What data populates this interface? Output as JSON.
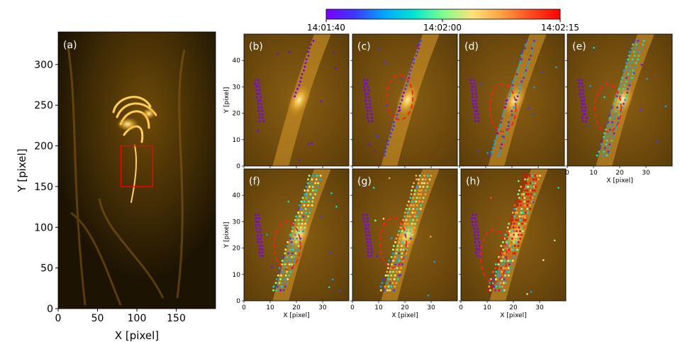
{
  "colorbar": {
    "tick_labels": [
      "14:01:40",
      "14:02:00",
      "14:02:15"
    ],
    "time_range_seconds": [
      0,
      35
    ],
    "tick_seconds": [
      0,
      20,
      35
    ],
    "stops": [
      "#7a00ff",
      "#3a3aff",
      "#00a8ff",
      "#00e6d2",
      "#7dff8c",
      "#ffe27a",
      "#ffa040",
      "#ff4a20",
      "#ff0000"
    ]
  },
  "chart_data": [
    {
      "panel": "(a)",
      "type": "image",
      "xlabel": "X [pixel]",
      "ylabel": "Y [pixel]",
      "xlim": [
        0,
        200
      ],
      "ylim": [
        0,
        340
      ],
      "xticks": [
        "0",
        "50",
        "100",
        "150"
      ],
      "yticks": [
        "0",
        "50",
        "100",
        "150",
        "200",
        "250",
        "300"
      ],
      "region_box": {
        "x": [
          80,
          120
        ],
        "y": [
          150,
          200
        ],
        "color": "#ff0000"
      }
    },
    {
      "panel": "(b)",
      "type": "scatter",
      "xlim": [
        0,
        40
      ],
      "ylim": [
        0,
        50
      ],
      "ylabel": "Y [pixel]",
      "yticks": [
        "0",
        "10",
        "20",
        "30",
        "40"
      ],
      "ellipse": null,
      "max_time_s": 0
    },
    {
      "panel": "(c)",
      "type": "scatter",
      "xlim": [
        0,
        40
      ],
      "ylim": [
        0,
        50
      ],
      "ellipse": {
        "cx": 18,
        "cy": 26,
        "rx": 5,
        "ry": 8.5
      },
      "max_time_s": 5
    },
    {
      "panel": "(d)",
      "type": "scatter",
      "xlim": [
        0,
        40
      ],
      "ylim": [
        0,
        50
      ],
      "ellipse": {
        "cx": 16.5,
        "cy": 22,
        "rx": 5,
        "ry": 9
      },
      "max_time_s": 10
    },
    {
      "panel": "(e)",
      "type": "scatter",
      "xlim": [
        0,
        40
      ],
      "ylim": [
        0,
        50
      ],
      "xlabel": "X [pixel]",
      "xticks": [
        "0",
        "10",
        "20",
        "30"
      ],
      "ellipse": {
        "cx": 15.5,
        "cy": 22,
        "rx": 5,
        "ry": 9
      },
      "max_time_s": 14
    },
    {
      "panel": "(f)",
      "type": "scatter",
      "xlim": [
        0,
        40
      ],
      "ylim": [
        0,
        50
      ],
      "xlabel": "X [pixel]",
      "ylabel": "Y [pixel]",
      "xticks": [
        "0",
        "10",
        "20",
        "30"
      ],
      "yticks": [
        "0",
        "10",
        "20",
        "30",
        "40"
      ],
      "ellipse": {
        "cx": 16.5,
        "cy": 21,
        "rx": 5,
        "ry": 9
      },
      "max_time_s": 20
    },
    {
      "panel": "(g)",
      "type": "scatter",
      "xlim": [
        0,
        40
      ],
      "ylim": [
        0,
        50
      ],
      "xlabel": "X [pixel]",
      "xticks": [
        "0",
        "10",
        "20",
        "30"
      ],
      "ellipse": {
        "cx": 15.5,
        "cy": 22,
        "rx": 5,
        "ry": 9.5
      },
      "max_time_s": 28
    },
    {
      "panel": "(h)",
      "type": "scatter",
      "xlim": [
        0,
        40
      ],
      "ylim": [
        0,
        50
      ],
      "xlabel": "X [pixel]",
      "xticks": [
        "0",
        "10",
        "20",
        "30"
      ],
      "ellipse": {
        "cx": 12.5,
        "cy": 17,
        "rx": 5,
        "ry": 10
      },
      "max_time_s": 35
    }
  ]
}
